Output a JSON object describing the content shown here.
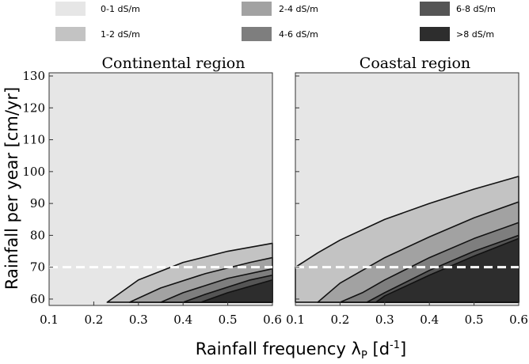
{
  "chart_data": {
    "type": "area",
    "legend": {
      "placement": "top",
      "entries": [
        {
          "label": "0-1 dS/m",
          "color": "#e6e6e6"
        },
        {
          "label": "1-2 dS/m",
          "color": "#c3c3c3"
        },
        {
          "label": "2-4 dS/m",
          "color": "#a2a2a2"
        },
        {
          "label": "4-6 dS/m",
          "color": "#7e7e7e"
        },
        {
          "label": "6-8 dS/m",
          "color": "#555555"
        },
        {
          "label": ">8 dS/m",
          "color": "#2d2d2d"
        }
      ]
    },
    "xlabel": "Rainfall frequency λ",
    "xlabel_sub": "P",
    "xlabel_unit_open": " [d",
    "xlabel_unit_sup": "-1",
    "xlabel_unit_close": "]",
    "ylabel": "Rainfall per year [cm/yr]",
    "xlim": [
      0.1,
      0.6
    ],
    "ylim": [
      58,
      131
    ],
    "xticks": [
      0.1,
      0.2,
      0.3,
      0.4,
      0.5,
      0.6
    ],
    "xtick_labels": [
      "0.1",
      "0.2",
      "0.3",
      "0.4",
      "0.5",
      "0.6"
    ],
    "yticks": [
      60,
      70,
      80,
      90,
      100,
      110,
      120,
      130
    ],
    "ytick_labels": [
      "60",
      "70",
      "80",
      "90",
      "100",
      "110",
      "120",
      "130"
    ],
    "reference_line": {
      "y": 70,
      "style": "dashed",
      "color": "#ffffff"
    },
    "baseline_y": 59,
    "panels": [
      {
        "title": "Continental region",
        "boundaries": [
          {
            "name": "1 dS/m",
            "x": [
              0.23,
              0.3,
              0.4,
              0.5,
              0.6
            ],
            "y": [
              59,
              66,
              71.5,
              75,
              77.5
            ]
          },
          {
            "name": "2 dS/m",
            "x": [
              0.28,
              0.35,
              0.45,
              0.55,
              0.6
            ],
            "y": [
              59,
              63.5,
              68,
              71.5,
              73
            ]
          },
          {
            "name": "4 dS/m",
            "x": [
              0.35,
              0.4,
              0.5,
              0.6
            ],
            "y": [
              59,
              62,
              66.5,
              69.5
            ]
          },
          {
            "name": "6 dS/m",
            "x": [
              0.4,
              0.45,
              0.55,
              0.6
            ],
            "y": [
              59,
              61.5,
              66,
              67.5
            ]
          },
          {
            "name": "8 dS/m",
            "x": [
              0.44,
              0.5,
              0.6
            ],
            "y": [
              59,
              62,
              66
            ]
          }
        ]
      },
      {
        "title": "Coastal region",
        "boundaries": [
          {
            "name": "1 dS/m",
            "x": [
              0.1,
              0.15,
              0.2,
              0.3,
              0.4,
              0.5,
              0.6
            ],
            "y": [
              70,
              74.5,
              78.5,
              85,
              90,
              94.5,
              98.5
            ]
          },
          {
            "name": "2 dS/m",
            "x": [
              0.15,
              0.2,
              0.3,
              0.4,
              0.5,
              0.6
            ],
            "y": [
              59,
              65,
              73,
              79.5,
              85.5,
              90.5
            ]
          },
          {
            "name": "4 dS/m",
            "x": [
              0.2,
              0.25,
              0.3,
              0.4,
              0.5,
              0.6
            ],
            "y": [
              59,
              62,
              66,
              73,
              79,
              84
            ]
          },
          {
            "name": "6 dS/m",
            "x": [
              0.26,
              0.3,
              0.4,
              0.5,
              0.6
            ],
            "y": [
              59,
              62,
              69,
              75,
              80
            ]
          },
          {
            "name": "8 dS/m",
            "x": [
              0.28,
              0.3,
              0.4,
              0.5,
              0.6
            ],
            "y": [
              59,
              61,
              67.5,
              73.5,
              79
            ]
          }
        ]
      }
    ]
  }
}
